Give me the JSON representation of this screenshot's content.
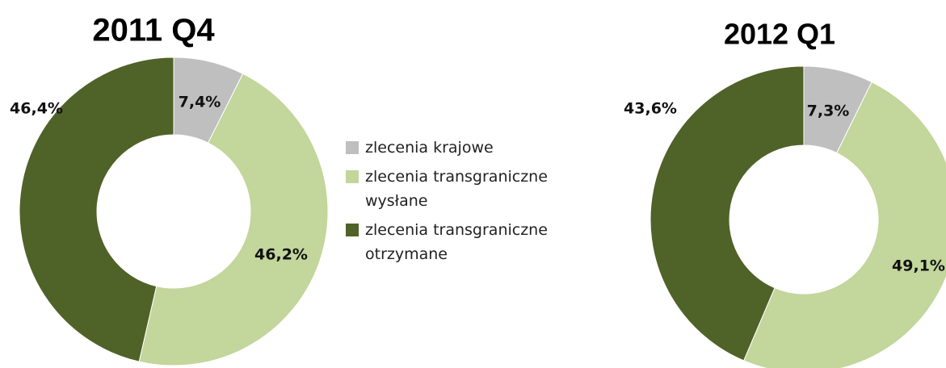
{
  "chart_data": [
    {
      "type": "donut",
      "title": "2011 Q4",
      "categories": [
        "zlecenia krajowe",
        "zlecenia transgraniczne wysłane",
        "zlecenia transgraniczne otrzymane"
      ],
      "values": [
        7.4,
        46.2,
        46.4
      ],
      "value_labels": [
        "7,4%",
        "46,2%",
        "46,4%"
      ],
      "colors": [
        "#bfbfbf",
        "#c3d69b",
        "#4f6228"
      ]
    },
    {
      "type": "donut",
      "title": "2012 Q1",
      "categories": [
        "zlecenia krajowe",
        "zlecenia transgraniczne wysłane",
        "zlecenia transgraniczne otrzymane"
      ],
      "values": [
        7.3,
        49.1,
        43.6
      ],
      "value_labels": [
        "7,3%",
        "49,1%",
        "43,6%"
      ],
      "colors": [
        "#bfbfbf",
        "#c3d69b",
        "#4f6228"
      ]
    }
  ]
}
